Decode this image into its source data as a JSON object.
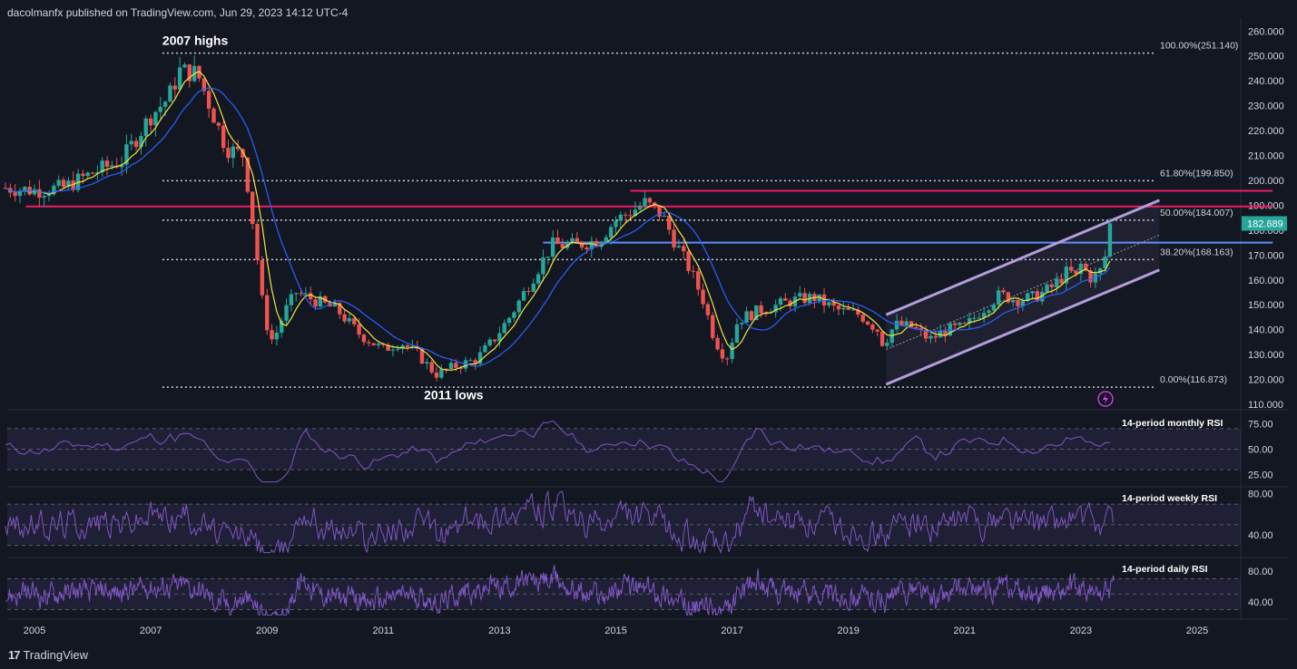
{
  "header": {
    "publisher_line": "dacolmanfx published on TradingView.com, Jun 29, 2023 14:12 UTC-4"
  },
  "footer": {
    "brand": "TradingView",
    "logo_glyph": "17"
  },
  "colors": {
    "background": "#131722",
    "up": "#26a69a",
    "down": "#ef5350",
    "ma_fast": "#f0e442",
    "ma_slow": "#2962ff",
    "resistance": "#e91e63",
    "support": "#5b8ff9",
    "channel": "#b39ddb",
    "rsi": "#7e57c2",
    "last_price_bg": "#26a69a"
  },
  "chart_data": [
    {
      "type": "candlestick",
      "x_axis": {
        "ticks": [
          "2005",
          "2007",
          "2009",
          "2011",
          "2013",
          "2015",
          "2017",
          "2019",
          "2021",
          "2023",
          "2025"
        ]
      },
      "y_axis": {
        "ylim": [
          110,
          262
        ],
        "ticks": [
          "260.000",
          "250.000",
          "240.000",
          "230.000",
          "220.000",
          "210.000",
          "200.000",
          "190.000",
          "180.000",
          "170.000",
          "160.000",
          "150.000",
          "140.000",
          "130.000",
          "120.000",
          "110.000"
        ]
      },
      "price_anchors": [
        [
          2004.5,
          197
        ],
        [
          2005.0,
          196
        ],
        [
          2005.5,
          197
        ],
        [
          2006.0,
          203
        ],
        [
          2006.5,
          208
        ],
        [
          2007.0,
          226
        ],
        [
          2007.3,
          233
        ],
        [
          2007.5,
          244
        ],
        [
          2007.8,
          243
        ],
        [
          2008.0,
          231
        ],
        [
          2008.3,
          213
        ],
        [
          2008.6,
          210
        ],
        [
          2008.8,
          175
        ],
        [
          2008.95,
          145
        ],
        [
          2009.1,
          135
        ],
        [
          2009.3,
          147
        ],
        [
          2009.5,
          155
        ],
        [
          2009.8,
          152
        ],
        [
          2010.2,
          148
        ],
        [
          2010.6,
          138
        ],
        [
          2011.0,
          132
        ],
        [
          2011.3,
          135
        ],
        [
          2011.6,
          130
        ],
        [
          2011.9,
          122
        ],
        [
          2012.2,
          125
        ],
        [
          2012.6,
          128
        ],
        [
          2012.9,
          136
        ],
        [
          2013.2,
          146
        ],
        [
          2013.5,
          158
        ],
        [
          2013.9,
          174
        ],
        [
          2014.3,
          174
        ],
        [
          2014.7,
          176
        ],
        [
          2015.0,
          184
        ],
        [
          2015.3,
          188
        ],
        [
          2015.5,
          191
        ],
        [
          2015.8,
          186
        ],
        [
          2016.0,
          176
        ],
        [
          2016.3,
          163
        ],
        [
          2016.5,
          152
        ],
        [
          2016.7,
          136
        ],
        [
          2016.9,
          128
        ],
        [
          2017.1,
          144
        ],
        [
          2017.5,
          148
        ],
        [
          2017.8,
          150
        ],
        [
          2018.1,
          152
        ],
        [
          2018.4,
          153
        ],
        [
          2018.8,
          148
        ],
        [
          2019.2,
          146
        ],
        [
          2019.5,
          140
        ],
        [
          2019.6,
          134
        ],
        [
          2019.8,
          142
        ],
        [
          2020.1,
          141
        ],
        [
          2020.4,
          136
        ],
        [
          2020.7,
          140
        ],
        [
          2021.0,
          141
        ],
        [
          2021.3,
          148
        ],
        [
          2021.6,
          154
        ],
        [
          2021.9,
          152
        ],
        [
          2022.2,
          153
        ],
        [
          2022.5,
          157
        ],
        [
          2022.8,
          164
        ],
        [
          2022.9,
          160
        ],
        [
          2023.0,
          166
        ],
        [
          2023.2,
          160
        ],
        [
          2023.35,
          164
        ],
        [
          2023.45,
          172
        ],
        [
          2023.5,
          182.689
        ]
      ],
      "levels": [
        {
          "label": "100.00%(251.140)",
          "value": 251.14
        },
        {
          "label": "61.80%(199.850)",
          "value": 199.85
        },
        {
          "label": "50.00%(184.007)",
          "value": 184.007
        },
        {
          "label": "38.20%(168.163)",
          "value": 168.163
        },
        {
          "label": "0.00%(116.873)",
          "value": 116.873
        }
      ],
      "horizontal_lines": [
        {
          "role": "resistance",
          "value": 189.5,
          "from": 2004.85,
          "to": 2026.3
        },
        {
          "role": "resistance",
          "value": 195.8,
          "from": 2015.25,
          "to": 2026.3
        },
        {
          "role": "support",
          "value": 175.0,
          "from": 2013.75,
          "to": 2026.3
        }
      ],
      "channel": {
        "upper": [
          [
            2019.65,
            146
          ],
          [
            2024.35,
            192
          ]
        ],
        "lower": [
          [
            2019.65,
            118
          ],
          [
            2024.35,
            164
          ]
        ],
        "mid": [
          [
            2019.65,
            132
          ],
          [
            2024.35,
            178
          ]
        ]
      },
      "last_price": "182.689",
      "annotations": [
        {
          "text": "2007 highs",
          "x": 2007.2,
          "y": 254.5
        },
        {
          "text": "2011 lows",
          "x": 2011.7,
          "y": 112
        }
      ]
    },
    {
      "type": "line",
      "name": "14-period monthly RSI",
      "label": "14-period monthly RSI",
      "y_ticks": [
        "75.00",
        "50.00",
        "25.00"
      ],
      "ylim": [
        15,
        85
      ],
      "band": [
        30,
        70
      ]
    },
    {
      "type": "line",
      "name": "14-period weekly RSI",
      "label": "14-period weekly RSI",
      "y_ticks": [
        "80.00",
        "40.00"
      ],
      "ylim": [
        20,
        85
      ],
      "band": [
        30,
        70
      ]
    },
    {
      "type": "line",
      "name": "14-period daily RSI",
      "label": "14-period daily RSI",
      "y_ticks": [
        "80.00",
        "40.00"
      ],
      "ylim": [
        20,
        95
      ],
      "band": [
        30,
        70
      ]
    }
  ]
}
